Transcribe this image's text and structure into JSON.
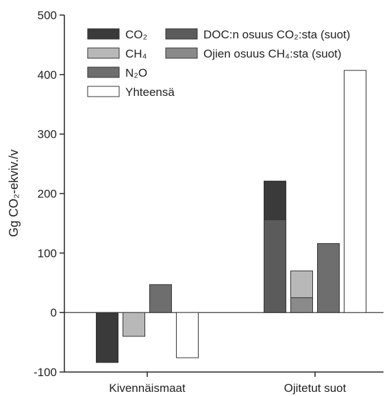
{
  "chart_data": {
    "type": "bar",
    "ylabel": "Gg CO₂-ekviv./v",
    "ylim": [
      -100,
      500
    ],
    "yticks": [
      "-100",
      "0",
      "100",
      "200",
      "300",
      "400",
      "500"
    ],
    "categories": [
      "Kivennäismaat",
      "Ojitetut suot"
    ],
    "series": [
      {
        "name": "CO₂",
        "values": [
          -84,
          221
        ],
        "color": "#3a3a3a"
      },
      {
        "name": "CH₄",
        "values": [
          -40,
          70
        ],
        "color": "#b8b8b8"
      },
      {
        "name": "N₂O",
        "values": [
          47,
          116
        ],
        "color": "#6e6e6e"
      },
      {
        "name": "Yhteensä",
        "values": [
          -76,
          407
        ],
        "color": "#ffffff"
      }
    ],
    "overlays": [
      {
        "name": "DOC:n osuus CO₂:sta (suot)",
        "category": "Ojitetut suot",
        "on_series": "CO₂",
        "value": 156,
        "color": "#5b5b5b"
      },
      {
        "name": "Ojien osuus CH₄:sta (suot)",
        "category": "Ojitetut suot",
        "on_series": "CH₄",
        "value": 25,
        "color": "#8a8a8a"
      }
    ],
    "legend": [
      {
        "label": "CO₂",
        "color": "#3a3a3a"
      },
      {
        "label": "CH₄",
        "color": "#b8b8b8"
      },
      {
        "label": "N₂O",
        "color": "#6e6e6e"
      },
      {
        "label": "Yhteensä",
        "color": "#ffffff"
      },
      {
        "label": "DOC:n osuus CO₂:sta (suot)",
        "color": "#5b5b5b"
      },
      {
        "label": "Ojien osuus CH₄:sta (suot)",
        "color": "#8a8a8a"
      }
    ],
    "legend_position": "top"
  }
}
